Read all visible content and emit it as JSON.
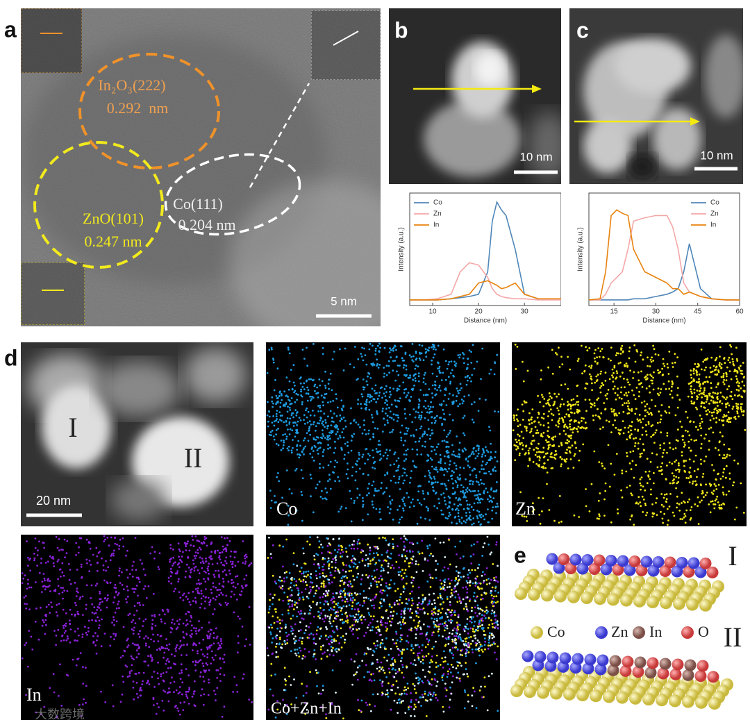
{
  "figure": {
    "panel_labels": [
      "a",
      "b",
      "c",
      "d",
      "e"
    ],
    "a": {
      "in2o3": "In₂O₃(222)",
      "in2o3_d": "0.292  nm",
      "zno": "ZnO(101)",
      "zno_d": "0.247 nm",
      "co": "Co(111)",
      "co_d": "0.204 nm",
      "scale": "5 nm"
    },
    "b": {
      "scale": "10 nm"
    },
    "c": {
      "scale": "10 nm"
    },
    "d": {
      "region_1": "I",
      "region_2": "II",
      "scale": "20 nm",
      "maps": [
        "Co",
        "Zn",
        "In",
        "Co+Zn+In"
      ]
    },
    "e": {
      "top": "I",
      "bottom": "II",
      "legend": [
        "Co",
        "Zn",
        "In",
        "O"
      ]
    },
    "watermark": "大数跨境"
  },
  "chart_data": [
    {
      "type": "line",
      "x_label": "Distance (nm)",
      "y_label": "Intensity (a.u.)",
      "xlim": [
        5,
        38
      ],
      "ylim": [
        0,
        1
      ],
      "xticks": [
        10,
        20,
        30
      ],
      "legend": "upper left",
      "x": [
        5,
        8,
        11,
        14,
        16,
        18,
        20,
        22,
        23,
        24,
        25,
        26,
        28,
        30,
        33,
        38
      ],
      "series": [
        {
          "name": "Co",
          "color": "#4f86b8",
          "values": [
            0.05,
            0.05,
            0.05,
            0.06,
            0.07,
            0.08,
            0.1,
            0.3,
            0.75,
            0.92,
            0.85,
            0.8,
            0.5,
            0.1,
            0.06,
            0.06
          ]
        },
        {
          "name": "Zn",
          "color": "#f4a7a7",
          "values": [
            0.05,
            0.05,
            0.06,
            0.1,
            0.3,
            0.38,
            0.36,
            0.25,
            0.15,
            0.1,
            0.08,
            0.07,
            0.06,
            0.06,
            0.05,
            0.05
          ]
        },
        {
          "name": "In",
          "color": "#e8820c",
          "values": [
            0.05,
            0.05,
            0.05,
            0.06,
            0.08,
            0.1,
            0.2,
            0.22,
            0.2,
            0.18,
            0.15,
            0.16,
            0.2,
            0.1,
            0.06,
            0.06
          ]
        }
      ]
    },
    {
      "type": "line",
      "x_label": "Distance (nm)",
      "y_label": "Intensity (a.u.)",
      "xlim": [
        6,
        60
      ],
      "ylim": [
        0,
        1
      ],
      "xticks": [
        15,
        30,
        45,
        60
      ],
      "legend": "upper right",
      "x": [
        6,
        10,
        12,
        14,
        16,
        18,
        20,
        22,
        26,
        30,
        34,
        36,
        38,
        40,
        42,
        44,
        46,
        50,
        55,
        60
      ],
      "series": [
        {
          "name": "Co",
          "color": "#4f86b8",
          "values": [
            0.05,
            0.05,
            0.05,
            0.05,
            0.05,
            0.05,
            0.05,
            0.06,
            0.06,
            0.08,
            0.1,
            0.12,
            0.15,
            0.3,
            0.55,
            0.35,
            0.15,
            0.06,
            0.05,
            0.05
          ]
        },
        {
          "name": "Zn",
          "color": "#f4a7a7",
          "values": [
            0.05,
            0.05,
            0.1,
            0.2,
            0.25,
            0.3,
            0.5,
            0.75,
            0.78,
            0.8,
            0.8,
            0.7,
            0.5,
            0.2,
            0.12,
            0.1,
            0.08,
            0.06,
            0.05,
            0.05
          ]
        },
        {
          "name": "In",
          "color": "#e8820c",
          "values": [
            0.05,
            0.06,
            0.3,
            0.8,
            0.85,
            0.82,
            0.8,
            0.5,
            0.3,
            0.25,
            0.2,
            0.15,
            0.15,
            0.1,
            0.12,
            0.1,
            0.08,
            0.06,
            0.05,
            0.05
          ]
        }
      ]
    }
  ]
}
